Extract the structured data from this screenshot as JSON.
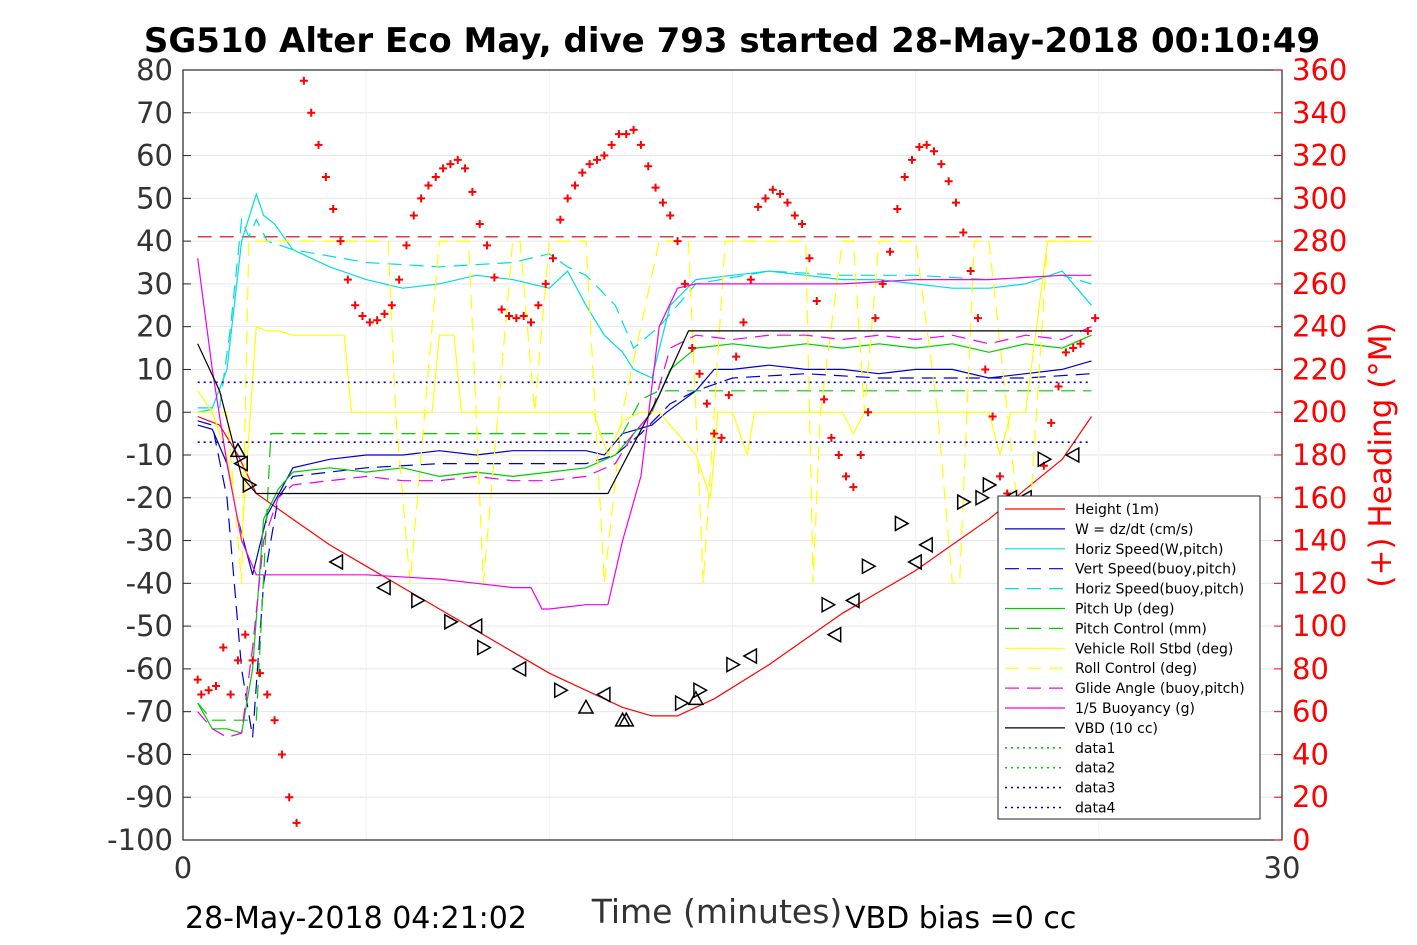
{
  "chart_data": {
    "type": "line",
    "title": "SG510 Alter Eco May, dive 793 started 28-May-2018 00:10:49",
    "xlabel": "Time (minutes)",
    "ylabel_right": "(+) Heading (°M)",
    "xlim": [
      0,
      30
    ],
    "ylim": [
      -100,
      80
    ],
    "ylim_right": [
      0,
      360
    ],
    "x_ticks": [
      "0",
      "30"
    ],
    "y_ticks": [
      "80",
      "70",
      "60",
      "50",
      "40",
      "30",
      "20",
      "10",
      "0",
      "-10",
      "-20",
      "-30",
      "-40",
      "-50",
      "-60",
      "-70",
      "-80",
      "-90",
      "-100"
    ],
    "y_ticks_right": [
      "360",
      "340",
      "320",
      "300",
      "280",
      "260",
      "240",
      "220",
      "200",
      "180",
      "160",
      "140",
      "120",
      "100",
      "80",
      "60",
      "40",
      "20",
      "0"
    ],
    "grid": true,
    "legend_position": "lower-right",
    "footer_left": "28-May-2018 04:21:02",
    "footer_right": "VBD bias =0 cc",
    "series": [
      {
        "name": "Height (1m)",
        "color": "#ff0000",
        "style": "solid",
        "x": [
          0.4,
          1.0,
          1.5,
          2.0,
          3.0,
          4.0,
          5.0,
          6.0,
          7.0,
          8.0,
          9.0,
          10.0,
          11.0,
          12.0,
          12.8,
          13.5,
          14.5,
          16.0,
          17.0,
          18.0,
          19.0,
          20.0,
          21.0,
          22.0,
          23.0,
          24.0,
          24.8
        ],
        "y": [
          -1,
          -3,
          -10,
          -19,
          -25,
          -31,
          -36,
          -41,
          -46,
          -51,
          -56,
          -61,
          -65,
          -69,
          -71,
          -71,
          -67,
          -59,
          -53,
          -47,
          -42,
          -37,
          -31,
          -25,
          -18,
          -11,
          -1
        ]
      },
      {
        "name": "W = dz/dt (cm/s)",
        "color": "#0000cc",
        "style": "solid",
        "x": [
          0.4,
          0.8,
          1.2,
          1.5,
          1.9,
          2.3,
          3.0,
          4.0,
          5.0,
          6.0,
          7.0,
          8.0,
          9.0,
          10.0,
          11.0,
          11.5,
          12.0,
          12.8,
          13.2,
          14.0,
          14.5,
          15.0,
          16.0,
          17.0,
          18.0,
          19.0,
          20.0,
          21.0,
          22.0,
          23.0,
          24.0,
          24.8
        ],
        "y": [
          -3,
          -4,
          -12,
          -25,
          -38,
          -24,
          -13,
          -11,
          -10,
          -10,
          -9,
          -10,
          -9,
          -9,
          -9,
          -10,
          -5,
          -3,
          0,
          5,
          10,
          10,
          11,
          10,
          10,
          9,
          10,
          10,
          8,
          9,
          10,
          12
        ]
      },
      {
        "name": "Horiz Speed(W,pitch)",
        "color": "#00dddd",
        "style": "solid",
        "x": [
          0.4,
          0.8,
          1.2,
          1.6,
          2.0,
          2.2,
          2.5,
          3.0,
          4.0,
          5.0,
          6.0,
          7.0,
          8.0,
          9.0,
          10.0,
          10.5,
          11.0,
          11.5,
          12.0,
          12.3,
          12.8,
          13.3,
          14.0,
          15.0,
          16.0,
          17.0,
          18.0,
          19.0,
          20.0,
          21.0,
          22.0,
          23.0,
          24.0,
          24.8
        ],
        "y": [
          1,
          1,
          10,
          40,
          51,
          46,
          44,
          38,
          34,
          31,
          29,
          30,
          32,
          31,
          29,
          33,
          25,
          18,
          14,
          10,
          8,
          25,
          31,
          32,
          33,
          32,
          31,
          31,
          30,
          29,
          29,
          30,
          33,
          25
        ]
      },
      {
        "name": "Vert Speed(buoy,pitch)",
        "color": "#0000cc",
        "style": "longdash",
        "x": [
          0.4,
          0.8,
          1.2,
          1.6,
          1.9,
          2.2,
          2.6,
          3.0,
          5.0,
          7.0,
          9.0,
          11.0,
          11.8,
          12.5,
          13.3,
          14.0,
          15.0,
          17.0,
          19.0,
          21.0,
          23.0,
          24.8
        ],
        "y": [
          -2,
          -3,
          -20,
          -60,
          -76,
          -40,
          -20,
          -15,
          -13,
          -12,
          -12,
          -12,
          -10,
          -5,
          2,
          5,
          8,
          9,
          8,
          8,
          8,
          9
        ]
      },
      {
        "name": "Horiz Speed(buoy,pitch)",
        "color": "#00dddd",
        "style": "longdash",
        "x": [
          0.4,
          1.0,
          1.3,
          1.6,
          1.8,
          2.0,
          2.3,
          3.0,
          5.0,
          7.0,
          9.0,
          10.0,
          10.5,
          11.0,
          11.8,
          12.3,
          13.0,
          14.0,
          16.0,
          18.0,
          20.0,
          22.0,
          24.0,
          24.8
        ],
        "y": [
          0,
          1,
          20,
          45,
          41,
          45,
          40,
          38,
          35,
          34,
          35,
          37,
          34,
          32,
          25,
          15,
          20,
          30,
          33,
          32,
          32,
          31,
          32,
          30
        ]
      },
      {
        "name": "Pitch Up (deg)",
        "color": "#00cc00",
        "style": "solid",
        "x": [
          0.4,
          0.8,
          1.2,
          1.6,
          1.9,
          2.2,
          2.6,
          3.0,
          4.0,
          5.0,
          6.0,
          7.0,
          8.0,
          9.0,
          10.0,
          11.0,
          11.8,
          12.3,
          12.8,
          13.3,
          14.0,
          15.0,
          16.0,
          17.0,
          18.0,
          19.0,
          20.0,
          21.0,
          22.0,
          23.0,
          24.0,
          24.8
        ],
        "y": [
          -68,
          -74,
          -74,
          -75,
          -60,
          -25,
          -18,
          -14,
          -13,
          -14,
          -13,
          -15,
          -14,
          -15,
          -14,
          -13,
          -10,
          -5,
          0,
          10,
          15,
          16,
          15,
          16,
          15,
          16,
          15,
          16,
          14,
          16,
          15,
          18
        ]
      },
      {
        "name": "Pitch Control (mm)",
        "color": "#00cc00",
        "style": "longdash",
        "x": [
          0.4,
          0.8,
          1.2,
          1.6,
          2.0,
          2.4,
          4.0,
          6.0,
          8.0,
          10.0,
          11.0,
          11.6,
          12.0,
          12.5,
          13.0,
          14.0,
          16.0,
          18.0,
          20.0,
          22.0,
          24.0,
          24.8
        ],
        "y": [
          -68,
          -72,
          -72,
          -72,
          -72,
          -5,
          -5,
          -5,
          -5,
          -5,
          -5,
          -5,
          -5,
          3,
          5,
          5,
          5,
          5,
          5,
          5,
          5,
          5
        ]
      },
      {
        "name": "Vehicle Roll Stbd (deg)",
        "color": "#ffff00",
        "style": "solid",
        "x": [
          0.4,
          0.8,
          1.2,
          1.6,
          2.0,
          2.3,
          2.6,
          3.0,
          4.0,
          4.4,
          4.6,
          5.0,
          6.0,
          6.8,
          7.0,
          7.4,
          7.6,
          8.0,
          8.4,
          8.6,
          9.0,
          10.0,
          10.6,
          10.8,
          11.2,
          11.6,
          12.0,
          12.5,
          13.0,
          14.0,
          14.4,
          14.6,
          15.0,
          15.4,
          15.6,
          16.0,
          17.0,
          18.0,
          18.3,
          18.6,
          19.0,
          20.0,
          21.0,
          22.0,
          22.3,
          22.6,
          23.0,
          23.6,
          24.0,
          24.8
        ],
        "y": [
          5,
          0,
          -10,
          -30,
          20,
          19,
          19,
          18,
          18,
          18,
          0,
          0,
          0,
          0,
          18,
          18,
          0,
          0,
          0,
          0,
          0,
          0,
          0,
          0,
          0,
          -10,
          -2,
          0,
          0,
          -10,
          -20,
          0,
          0,
          -10,
          0,
          0,
          0,
          0,
          -5,
          0,
          0,
          0,
          0,
          0,
          -10,
          0,
          0,
          40,
          40,
          40
        ]
      },
      {
        "name": "Roll Control (deg)",
        "color": "#ffff00",
        "style": "longdash",
        "x": [
          0.4,
          0.8,
          1.2,
          1.6,
          1.8,
          2.0,
          2.4,
          3.0,
          4.0,
          5.0,
          5.6,
          5.8,
          6.2,
          7.0,
          7.8,
          8.2,
          9.0,
          9.2,
          9.6,
          10.0,
          11.0,
          11.5,
          12.0,
          13.0,
          13.8,
          14.2,
          14.5,
          14.8,
          15.0,
          16.0,
          17.0,
          17.2,
          17.4,
          18.0,
          18.3,
          18.6,
          19.0,
          20.0,
          20.6,
          21.0,
          21.2,
          21.6,
          22.0,
          22.5,
          23.0,
          23.6,
          24.0,
          24.8
        ],
        "y": [
          0,
          0,
          0,
          -40,
          40,
          40,
          40,
          40,
          40,
          40,
          40,
          0,
          -40,
          40,
          40,
          -40,
          40,
          40,
          0,
          40,
          40,
          -40,
          0,
          40,
          40,
          -40,
          0,
          40,
          40,
          40,
          40,
          -40,
          0,
          40,
          40,
          0,
          40,
          40,
          0,
          -40,
          -40,
          40,
          40,
          0,
          -40,
          40,
          40,
          40
        ]
      },
      {
        "name": "Glide Angle (buoy,pitch)",
        "color": "#ee00ee",
        "style": "longdash",
        "x": [
          0.4,
          0.8,
          1.2,
          1.6,
          1.9,
          2.2,
          2.6,
          3.0,
          4.0,
          5.0,
          6.0,
          7.0,
          8.0,
          9.0,
          10.0,
          11.0,
          11.8,
          12.3,
          12.8,
          13.3,
          14.0,
          15.0,
          16.0,
          17.0,
          18.0,
          19.0,
          20.0,
          21.0,
          22.0,
          23.0,
          24.0,
          24.8
        ],
        "y": [
          -70,
          -74,
          -76,
          -75,
          -55,
          -30,
          -20,
          -17,
          -16,
          -15,
          -16,
          -16,
          -15,
          -16,
          -16,
          -15,
          -12,
          -5,
          0,
          15,
          18,
          17,
          18,
          18,
          17,
          18,
          17,
          18,
          16,
          18,
          17,
          20
        ]
      },
      {
        "name": "1/5 Buoyancy (g)",
        "color": "#ee00ee",
        "style": "solid",
        "x": [
          0.4,
          0.8,
          1.2,
          1.6,
          2.0,
          3.0,
          5.0,
          7.0,
          8.0,
          9.0,
          9.5,
          9.8,
          10.0,
          11.0,
          11.6,
          12.0,
          12.5,
          13.0,
          13.5,
          14.0,
          16.0,
          18.0,
          20.0,
          22.0,
          24.0,
          24.8
        ],
        "y": [
          36,
          10,
          -12,
          -30,
          -38,
          -38,
          -38,
          -39,
          -40,
          -41,
          -41,
          -46,
          -46,
          -45,
          -45,
          -30,
          -15,
          20,
          29,
          30,
          30,
          30,
          31,
          31,
          32,
          32
        ]
      },
      {
        "name": "VBD (10 cc)",
        "color": "#000000",
        "style": "solid",
        "x": [
          0.4,
          1.0,
          1.6,
          2.0,
          3.0,
          5.0,
          8.0,
          10.0,
          11.0,
          11.6,
          13.0,
          13.8,
          16.0,
          20.0,
          24.8
        ],
        "y": [
          16,
          5,
          -15,
          -19,
          -19,
          -19,
          -19,
          -19,
          -19,
          -19,
          4,
          19,
          19,
          19,
          19
        ]
      },
      {
        "name": "data1",
        "color": "#00cc00",
        "style": "dotted",
        "x": [],
        "y": []
      },
      {
        "name": "data2",
        "color": "#00cc00",
        "style": "dotted",
        "x": [],
        "y": []
      },
      {
        "name": "data3",
        "color": "#0000cc",
        "style": "dotted",
        "x": [
          0.4,
          24.8
        ],
        "y": [
          7,
          7
        ]
      },
      {
        "name": "data4",
        "color": "#0000cc",
        "style": "dotted",
        "x": [
          0.4,
          24.8
        ],
        "y": [
          -7,
          -7
        ]
      }
    ],
    "reference_lines": [
      {
        "color": "#cc0000",
        "style": "longdash",
        "x": [
          0.4,
          24.8
        ],
        "y": [
          41,
          41
        ]
      }
    ],
    "heading_points": {
      "color": "#ff0000",
      "marker": "+",
      "x": [
        0.4,
        0.5,
        0.7,
        0.9,
        1.1,
        1.3,
        1.5,
        1.7,
        1.9,
        2.1,
        2.3,
        2.5,
        2.7,
        2.9,
        3.1,
        3.3,
        3.5,
        3.7,
        3.9,
        4.1,
        4.3,
        4.5,
        4.7,
        4.9,
        5.1,
        5.3,
        5.5,
        5.7,
        5.9,
        6.1,
        6.3,
        6.5,
        6.7,
        6.9,
        7.1,
        7.3,
        7.5,
        7.7,
        7.9,
        8.1,
        8.3,
        8.5,
        8.7,
        8.9,
        9.1,
        9.3,
        9.5,
        9.7,
        9.9,
        10.1,
        10.3,
        10.5,
        10.7,
        10.9,
        11.1,
        11.3,
        11.5,
        11.7,
        11.9,
        12.1,
        12.3,
        12.5,
        12.7,
        12.9,
        13.1,
        13.3,
        13.5,
        13.7,
        13.9,
        14.1,
        14.3,
        14.5,
        14.7,
        14.9,
        15.1,
        15.3,
        15.5,
        15.7,
        15.9,
        16.1,
        16.3,
        16.5,
        16.7,
        16.9,
        17.1,
        17.3,
        17.5,
        17.7,
        17.9,
        18.1,
        18.3,
        18.5,
        18.7,
        18.9,
        19.1,
        19.3,
        19.5,
        19.7,
        19.9,
        20.1,
        20.3,
        20.5,
        20.7,
        20.9,
        21.1,
        21.3,
        21.5,
        21.7,
        21.9,
        22.1,
        22.3,
        22.5,
        22.7,
        22.9,
        23.1,
        23.3,
        23.5,
        23.7,
        23.9,
        24.1,
        24.3,
        24.5,
        24.7,
        24.9
      ],
      "y": [
        75,
        68,
        70,
        72,
        90,
        68,
        84,
        96,
        84,
        78,
        68,
        56,
        40,
        20,
        8,
        355,
        340,
        325,
        310,
        295,
        280,
        262,
        250,
        245,
        242,
        243,
        246,
        250,
        262,
        278,
        292,
        300,
        306,
        310,
        314,
        316,
        318,
        314,
        303,
        288,
        278,
        263,
        248,
        245,
        244,
        245,
        242,
        250,
        260,
        272,
        290,
        300,
        306,
        312,
        316,
        318,
        320,
        325,
        330,
        330,
        332,
        325,
        315,
        305,
        298,
        292,
        280,
        260,
        230,
        218,
        204,
        190,
        188,
        208,
        226,
        242,
        262,
        296,
        300,
        304,
        302,
        298,
        292,
        288,
        272,
        252,
        206,
        188,
        180,
        170,
        165,
        180,
        200,
        244,
        260,
        275,
        295,
        310,
        318,
        324,
        325,
        322,
        316,
        308,
        298,
        284,
        266,
        244,
        220,
        198,
        170,
        162,
        152,
        140,
        130,
        150,
        175,
        195,
        212,
        228,
        230,
        232,
        238,
        244
      ]
    },
    "triangle_markers": {
      "color": "#000000",
      "up_x": [
        1.5,
        11.0,
        12.0,
        12.1,
        14.0
      ],
      "up_y": [
        -9,
        -69,
        -72,
        -72,
        -67
      ],
      "left_x": [
        1.6,
        4.2,
        5.5,
        8.0,
        9.2,
        11.5,
        15.5,
        17.8,
        18.3,
        20.0,
        20.3,
        22.6,
        23.0,
        24.3
      ],
      "left_y": [
        -12,
        -35,
        -41,
        -50,
        -60,
        -66,
        -57,
        -52,
        -44,
        -35,
        -31,
        -20,
        -20,
        -10
      ],
      "right_x": [
        1.8,
        6.4,
        7.3,
        8.2,
        10.3,
        13.6,
        14.1,
        15.0,
        17.6,
        18.7,
        19.6,
        21.3,
        21.8,
        22.0,
        23.5
      ],
      "right_y": [
        -17,
        -44,
        -49,
        -55,
        -65,
        -68,
        -65,
        -59,
        -45,
        -36,
        -26,
        -21,
        -20,
        -17,
        -11
      ]
    }
  }
}
